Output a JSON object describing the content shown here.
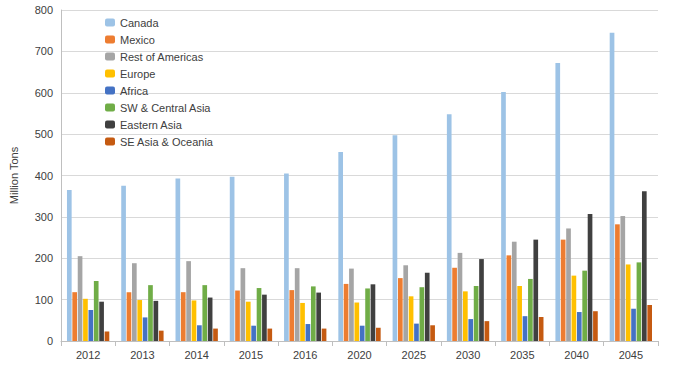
{
  "chart_data": {
    "type": "bar",
    "y_label": "Million Tons",
    "categories": [
      "2012",
      "2013",
      "2014",
      "2015",
      "2016",
      "2020",
      "2025",
      "2030",
      "2035",
      "2040",
      "2045"
    ],
    "series": [
      {
        "name": "Canada",
        "color": "#9dc3e6",
        "values": [
          365,
          375,
          393,
          397,
          405,
          457,
          497,
          548,
          602,
          672,
          745
        ]
      },
      {
        "name": "Mexico",
        "color": "#ed7d31",
        "values": [
          118,
          118,
          118,
          122,
          123,
          138,
          152,
          177,
          207,
          245,
          282
        ]
      },
      {
        "name": "Rest of Americas",
        "color": "#a5a5a5",
        "values": [
          205,
          188,
          193,
          176,
          176,
          175,
          183,
          213,
          240,
          272,
          302
        ]
      },
      {
        "name": "Europe",
        "color": "#ffc000",
        "values": [
          102,
          99,
          98,
          95,
          92,
          93,
          108,
          120,
          133,
          158,
          185
        ]
      },
      {
        "name": "Africa",
        "color": "#4472c4",
        "values": [
          75,
          57,
          38,
          37,
          41,
          37,
          42,
          53,
          60,
          70,
          78
        ]
      },
      {
        "name": "SW & Central Asia",
        "color": "#70ad47",
        "values": [
          145,
          135,
          135,
          128,
          132,
          127,
          130,
          133,
          150,
          170,
          190
        ]
      },
      {
        "name": "Eastern Asia",
        "color": "#404040",
        "values": [
          95,
          97,
          105,
          112,
          117,
          137,
          165,
          198,
          245,
          307,
          362
        ]
      },
      {
        "name": "SE Asia & Oceania",
        "color": "#c55a11",
        "values": [
          23,
          25,
          30,
          30,
          30,
          32,
          38,
          48,
          58,
          72,
          87
        ]
      }
    ],
    "ylim": [
      0,
      800
    ],
    "yticks": [
      0,
      100,
      200,
      300,
      400,
      500,
      600,
      700,
      800
    ],
    "grid": true,
    "legend": "top-left"
  }
}
